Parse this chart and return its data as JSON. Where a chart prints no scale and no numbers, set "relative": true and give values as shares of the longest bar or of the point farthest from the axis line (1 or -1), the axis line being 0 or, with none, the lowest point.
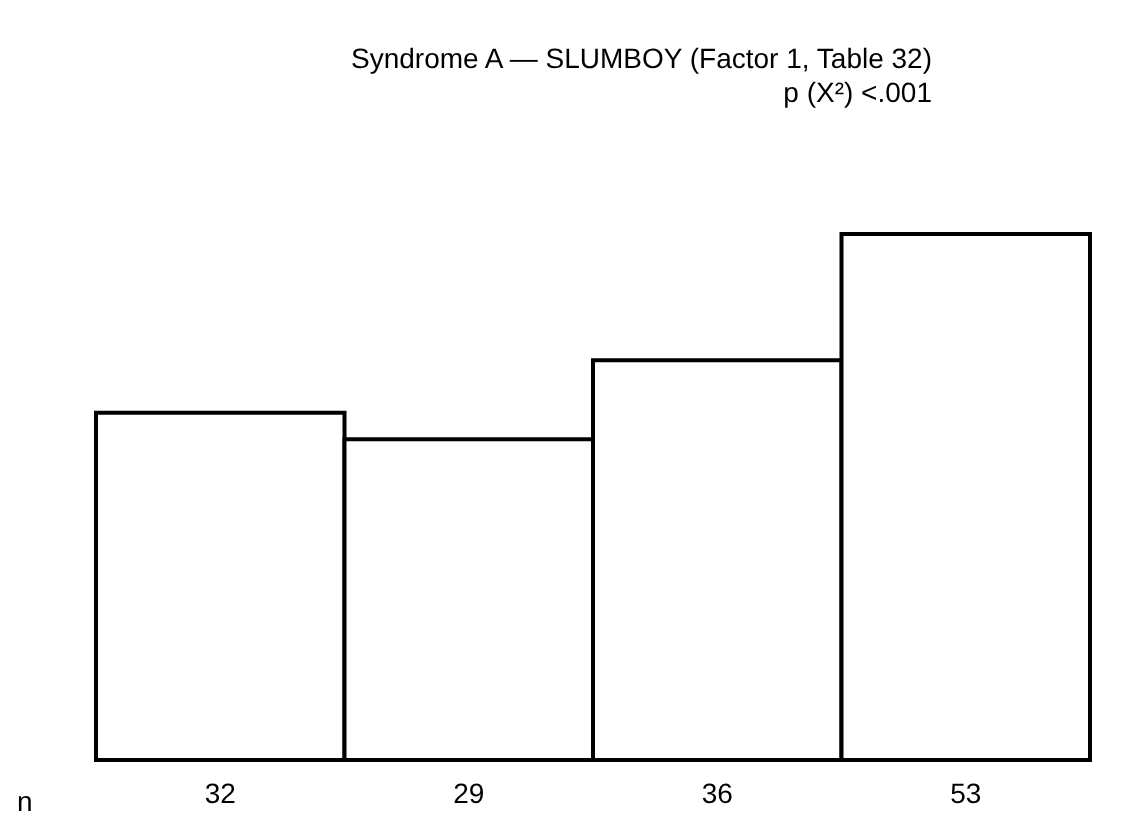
{
  "chart_data": {
    "type": "bar",
    "title": "Syndrome A — SLUMBOY (Factor 1, Table 32)",
    "subtitle": "p (X²) <.001",
    "xlabel": "n",
    "categories": [
      "32",
      "29",
      "36",
      "53"
    ],
    "relative": true,
    "values": [
      0.66,
      0.61,
      0.76,
      1
    ],
    "color": "#ffffff",
    "grid": false
  }
}
